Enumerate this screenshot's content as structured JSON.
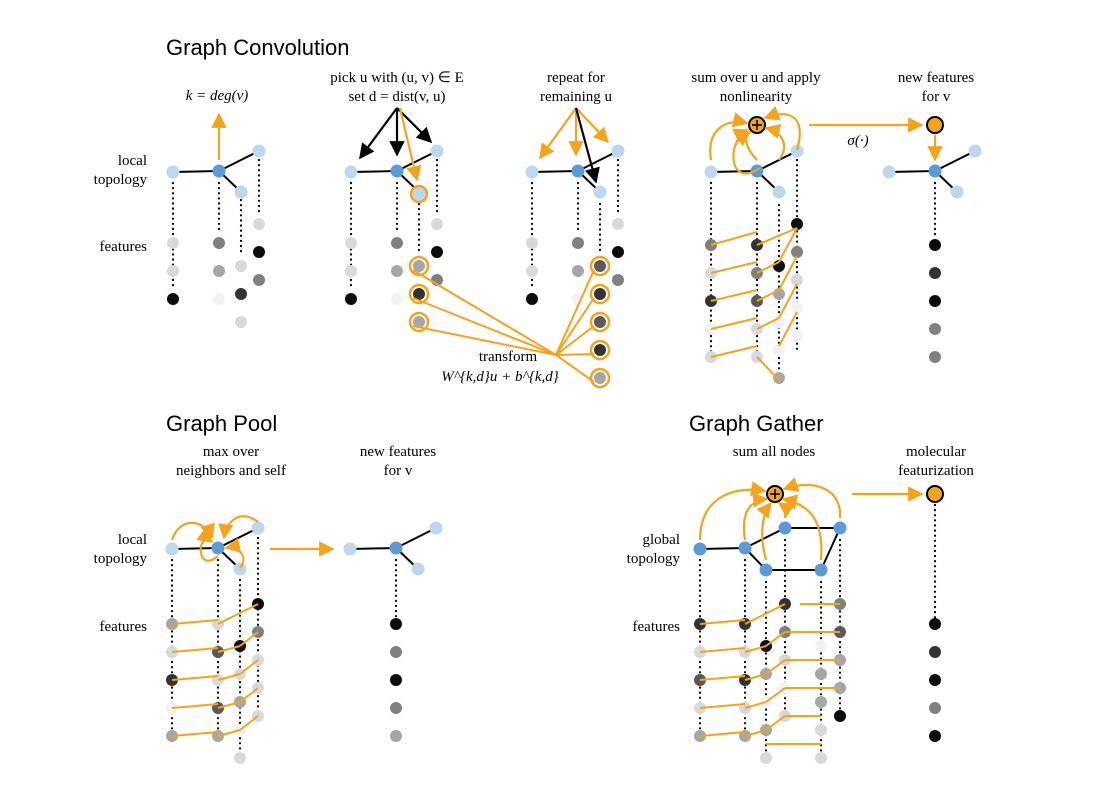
{
  "panels": {
    "conv": {
      "title": "Graph Convolution",
      "step1": "k = deg(v)",
      "step2_line1": "pick u with (u, v) ∈ E",
      "step2_line2": "set d = dist(v, u)",
      "step3_line1": "repeat for",
      "step3_line2": "remaining u",
      "step4_line1": "sum over u and apply",
      "step4_line2": "nonlinearity",
      "step5_line1": "new features",
      "step5_line2": "for v",
      "sigma": "σ(·)",
      "transform_line1": "transform",
      "transform_line2": "W^{k,d}u + b^{k,d}",
      "label_topology_1": "local",
      "label_topology_2": "topology",
      "label_features": "features"
    },
    "pool": {
      "title": "Graph Pool",
      "step1_line1": "max over",
      "step1_line2": "neighbors and self",
      "step2_line1": "new features",
      "step2_line2": "for v",
      "label_topology_1": "local",
      "label_topology_2": "topology",
      "label_features": "features"
    },
    "gather": {
      "title": "Graph Gather",
      "step1": "sum all nodes",
      "step2_line1": "molecular",
      "step2_line2": "featurization",
      "label_topology_1": "global",
      "label_topology_2": "topology",
      "label_features": "features"
    }
  },
  "colors": {
    "orange": "#f5a31c",
    "center_node": "#5b9bd5",
    "neighbor_node": "#bdd7ee"
  }
}
